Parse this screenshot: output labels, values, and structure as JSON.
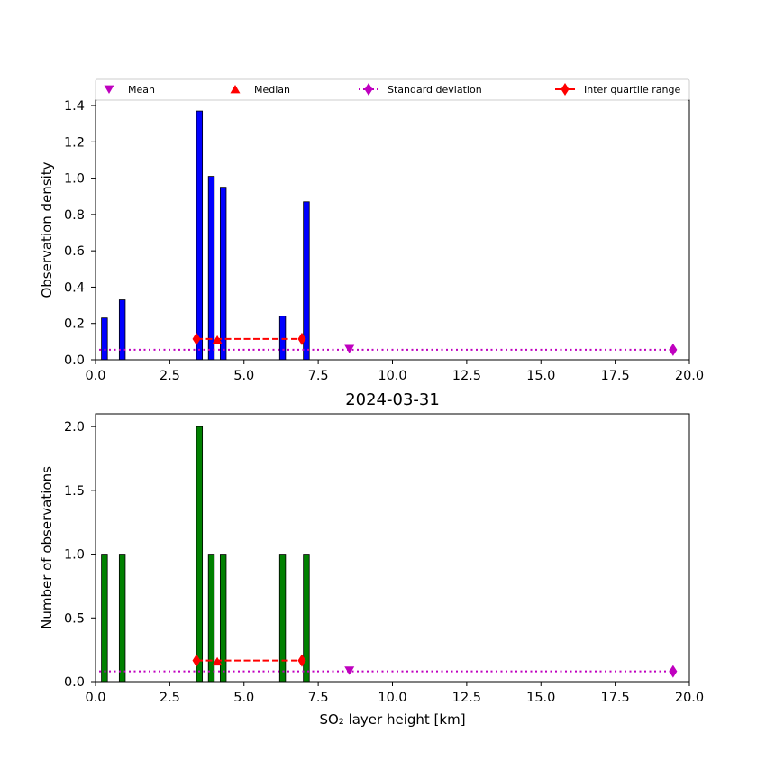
{
  "legend": {
    "items": [
      {
        "label": "Mean",
        "marker": "triangle-down",
        "color": "#bf00bf"
      },
      {
        "label": "Median",
        "marker": "triangle-up",
        "color": "#ff0000"
      },
      {
        "label": "Standard deviation",
        "marker": "diamond-dotted-line",
        "color": "#bf00bf"
      },
      {
        "label": "Inter quartile range",
        "marker": "diamond-dashed-line",
        "color": "#ff0000"
      }
    ]
  },
  "chart_data": [
    {
      "type": "bar",
      "title": "",
      "xlabel": "",
      "ylabel": "Observation density",
      "xlim": [
        0,
        20
      ],
      "ylim": [
        0,
        1.43
      ],
      "xticks": [
        "0.0",
        "2.5",
        "5.0",
        "7.5",
        "10.0",
        "12.5",
        "15.0",
        "17.5",
        "20.0"
      ],
      "yticks": [
        "0.0",
        "0.2",
        "0.4",
        "0.6",
        "0.8",
        "1.0",
        "1.2",
        "1.4"
      ],
      "bar_color": "#0000ff",
      "bar_width": 0.2,
      "bars": [
        {
          "x": 0.3,
          "value": 0.23
        },
        {
          "x": 0.9,
          "value": 0.33
        },
        {
          "x": 3.5,
          "value": 1.37
        },
        {
          "x": 3.9,
          "value": 1.01
        },
        {
          "x": 4.3,
          "value": 0.95
        },
        {
          "x": 6.3,
          "value": 0.24
        },
        {
          "x": 7.1,
          "value": 0.87
        }
      ],
      "stats": {
        "mean": 8.55,
        "median": 4.1,
        "std_line_y": 0.055,
        "std_end": 19.45,
        "iqr": [
          3.4,
          6.95
        ],
        "iqr_y": 0.115
      }
    },
    {
      "type": "bar",
      "title": "2024-03-31",
      "xlabel": "SO₂ layer height [km]",
      "ylabel": "Number of observations",
      "xlim": [
        0,
        20
      ],
      "ylim": [
        0,
        2.1
      ],
      "xticks": [
        "0.0",
        "2.5",
        "5.0",
        "7.5",
        "10.0",
        "12.5",
        "15.0",
        "17.5",
        "20.0"
      ],
      "yticks": [
        "0.0",
        "0.5",
        "1.0",
        "1.5",
        "2.0"
      ],
      "bar_color": "#008000",
      "bar_width": 0.2,
      "bars": [
        {
          "x": 0.3,
          "value": 1
        },
        {
          "x": 0.9,
          "value": 1
        },
        {
          "x": 3.5,
          "value": 2
        },
        {
          "x": 3.9,
          "value": 1
        },
        {
          "x": 4.3,
          "value": 1
        },
        {
          "x": 6.3,
          "value": 1
        },
        {
          "x": 7.1,
          "value": 1
        }
      ],
      "stats": {
        "mean": 8.55,
        "median": 4.1,
        "std_line_y": 0.08,
        "std_end": 19.45,
        "iqr": [
          3.4,
          6.95
        ],
        "iqr_y": 0.165
      }
    }
  ]
}
